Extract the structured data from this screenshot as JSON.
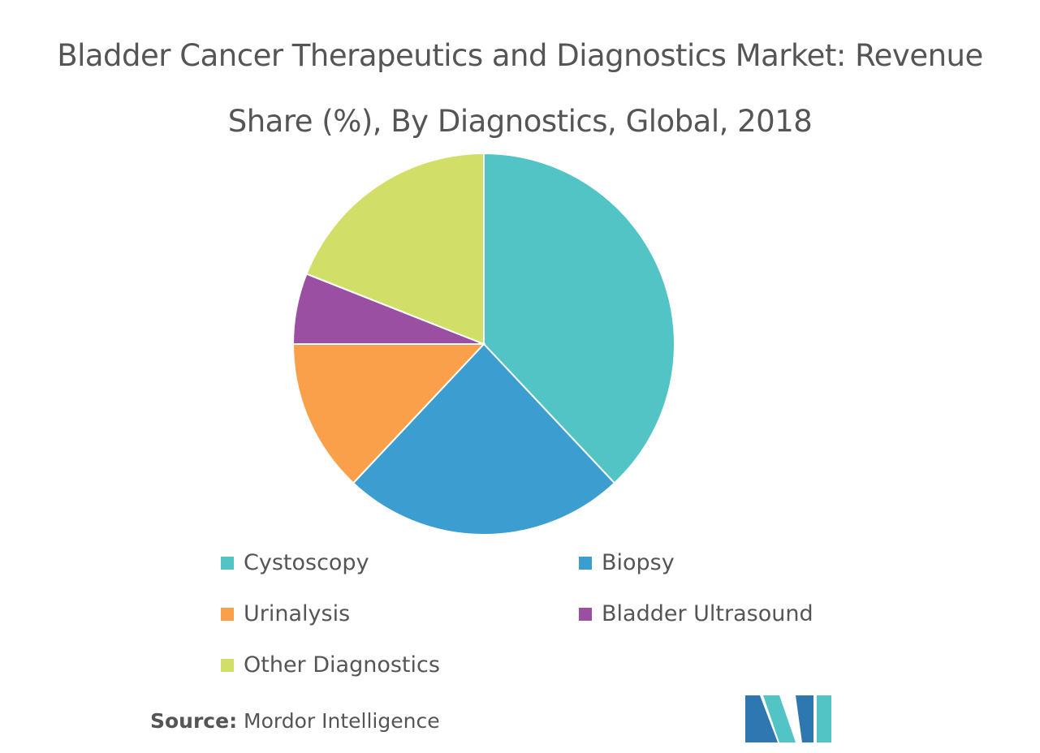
{
  "chart_data": {
    "type": "pie",
    "title": "Bladder Cancer Therapeutics and Diagnostics Market: Revenue Share (%), By Diagnostics, Global, 2018",
    "categories": [
      "Cystoscopy",
      "Biopsy",
      "Urinalysis",
      "Bladder Ultrasound",
      "Other Diagnostics"
    ],
    "values": [
      38,
      24,
      13,
      6,
      19
    ],
    "colors": [
      "#52c4c6",
      "#3c9dd0",
      "#fba04a",
      "#9b4fa2",
      "#d1df68"
    ]
  },
  "source": {
    "label": "Source:",
    "text": "Mordor Intelligence"
  }
}
